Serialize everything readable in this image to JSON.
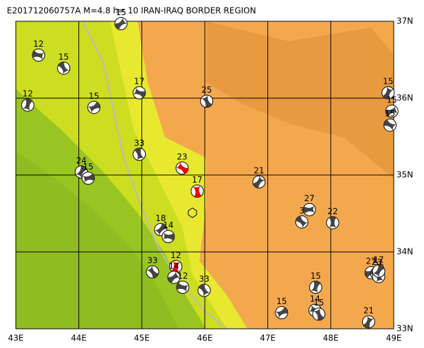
{
  "map": {
    "title": "E201712060757A M=4.8 h= 10 IRAN-IRAQ BORDER REGION",
    "lonlim": [
      43,
      49
    ],
    "latlim": [
      33,
      37
    ],
    "lonticks": [
      {
        "value": 43,
        "label": "43E"
      },
      {
        "value": 44,
        "label": "44E"
      },
      {
        "value": 45,
        "label": "45E"
      },
      {
        "value": 46,
        "label": "46E"
      },
      {
        "value": 47,
        "label": "47E"
      },
      {
        "value": 48,
        "label": "48E"
      },
      {
        "value": 49,
        "label": "49E"
      }
    ],
    "latticks": [
      {
        "value": 33,
        "label": "33N"
      },
      {
        "value": 34,
        "label": "34N"
      },
      {
        "value": 35,
        "label": "35N"
      },
      {
        "value": 36,
        "label": "36N"
      },
      {
        "value": 37,
        "label": "37N"
      }
    ],
    "grid": true,
    "events": [
      {
        "label": "15",
        "lon": 44.67,
        "lat": 36.97,
        "color": "black"
      },
      {
        "label": "12",
        "lon": 43.36,
        "lat": 36.56,
        "color": "black"
      },
      {
        "label": "15",
        "lon": 43.76,
        "lat": 36.39,
        "color": "black"
      },
      {
        "label": "12",
        "lon": 43.19,
        "lat": 35.91,
        "color": "black"
      },
      {
        "label": "15",
        "lon": 44.24,
        "lat": 35.88,
        "color": "black"
      },
      {
        "label": "17",
        "lon": 44.96,
        "lat": 36.07,
        "color": "black"
      },
      {
        "label": "25",
        "lon": 46.03,
        "lat": 35.96,
        "color": "black"
      },
      {
        "label": "15",
        "lon": 48.91,
        "lat": 36.07,
        "color": "black"
      },
      {
        "label": "15",
        "lon": 48.97,
        "lat": 35.83,
        "color": "black"
      },
      {
        "label": "15",
        "lon": 48.94,
        "lat": 35.65,
        "color": "black"
      },
      {
        "label": "33",
        "lon": 44.96,
        "lat": 35.27,
        "color": "black"
      },
      {
        "label": "24",
        "lon": 44.04,
        "lat": 35.04,
        "color": "black"
      },
      {
        "label": "15",
        "lon": 44.15,
        "lat": 34.96,
        "color": "black"
      },
      {
        "label": "23",
        "lon": 45.64,
        "lat": 35.09,
        "color": "red"
      },
      {
        "label": "17",
        "lon": 45.88,
        "lat": 34.79,
        "color": "red"
      },
      {
        "label": "21",
        "lon": 46.86,
        "lat": 34.91,
        "color": "black"
      },
      {
        "label": "27",
        "lon": 47.66,
        "lat": 34.55,
        "color": "black"
      },
      {
        "label": "3",
        "lon": 47.54,
        "lat": 34.39,
        "color": "black"
      },
      {
        "label": "22",
        "lon": 48.03,
        "lat": 34.38,
        "color": "black"
      },
      {
        "label": "18",
        "lon": 45.3,
        "lat": 34.29,
        "color": "black"
      },
      {
        "label": "14",
        "lon": 45.42,
        "lat": 34.2,
        "color": "black"
      },
      {
        "label": "33",
        "lon": 45.17,
        "lat": 33.74,
        "color": "black"
      },
      {
        "label": "12",
        "lon": 45.54,
        "lat": 33.81,
        "color": "red"
      },
      {
        "label": "14",
        "lon": 45.51,
        "lat": 33.67,
        "color": "black"
      },
      {
        "label": "12",
        "lon": 45.65,
        "lat": 33.54,
        "color": "black"
      },
      {
        "label": "33",
        "lon": 45.99,
        "lat": 33.5,
        "color": "black"
      },
      {
        "label": "15",
        "lon": 47.76,
        "lat": 33.54,
        "color": "black"
      },
      {
        "label": "15",
        "lon": 47.22,
        "lat": 33.21,
        "color": "black"
      },
      {
        "label": "14",
        "lon": 47.75,
        "lat": 33.24,
        "color": "black"
      },
      {
        "label": "15",
        "lon": 47.81,
        "lat": 33.19,
        "color": "black"
      },
      {
        "label": "21",
        "lon": 48.6,
        "lat": 33.09,
        "color": "black"
      },
      {
        "label": "27",
        "lon": 48.64,
        "lat": 33.73,
        "color": "black"
      },
      {
        "label": "23",
        "lon": 48.73,
        "lat": 33.72,
        "color": "black"
      },
      {
        "label": "26",
        "lon": 48.76,
        "lat": 33.68,
        "color": "black"
      },
      {
        "label": "17",
        "lon": 48.76,
        "lat": 33.75,
        "color": "black"
      }
    ]
  }
}
